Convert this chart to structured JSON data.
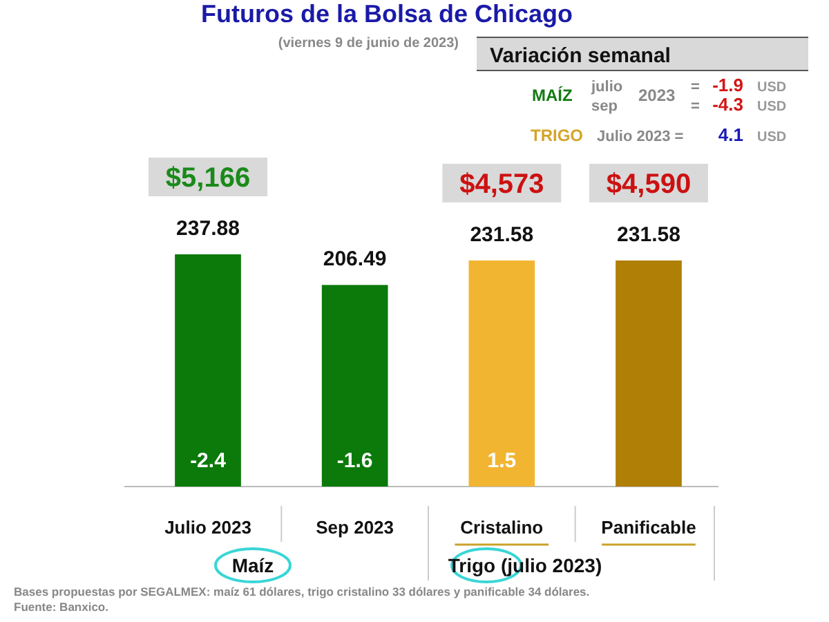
{
  "chart_data": {
    "type": "bar",
    "title": "Futuros de la Bolsa de Chicago",
    "subtitle": "(viernes 9 de junio de 2023)",
    "categories": [
      "Julio 2023",
      "Sep 2023",
      "Cristalino",
      "Panificable"
    ],
    "values": [
      237.88,
      206.49,
      231.58,
      231.58
    ],
    "colors": [
      "#0b7a0b",
      "#0b7a0b",
      "#f2b531",
      "#b07f05"
    ],
    "tick_labels": "x",
    "data_labels": true,
    "annotations": [
      "$5,166",
      "$4,573",
      "$4,590",
      "-2.4",
      "-1.6",
      "1.5",
      "Variación semanal",
      "MAÍZ",
      "julio",
      "sep",
      "2023",
      "=",
      "=",
      "-1.9",
      "-4.3",
      "USD",
      "USD",
      "TRIGO",
      "Julio 2023 =",
      "4.1",
      "USD",
      "Maíz",
      "Trigo (julio 2023)",
      "Bases propuestas por SEGALMEX: maíz 61 dólares, trigo cristalino 33 dólares y panificable 34 dólares.",
      "Fuente: Banxico."
    ]
  }
}
